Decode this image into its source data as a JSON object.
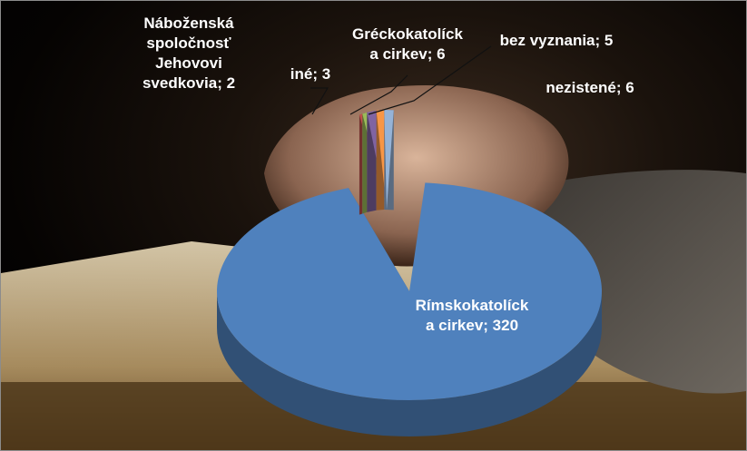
{
  "chart_data": {
    "type": "pie",
    "title": "",
    "slices": [
      {
        "label": "Rímskokatolícka cirkev",
        "value": 320,
        "color": "#4f81bd",
        "label_lines": [
          "Rímskokatolíck",
          "a cirkev; 320"
        ]
      },
      {
        "label": "Náboženská spoločnosť Jehovovi svedkovia",
        "value": 2,
        "color": "#c0504d",
        "label_lines": [
          "Náboženská",
          "spoločnosť",
          "Jehovovi",
          "svedkovia; 2"
        ]
      },
      {
        "label": "iné",
        "value": 3,
        "color": "#9bbb59",
        "label_lines": [
          "iné; 3"
        ]
      },
      {
        "label": "Gréckokatolícka cirkev",
        "value": 6,
        "color": "#8064a2",
        "label_lines": [
          "Gréckokatolíck",
          "a cirkev; 6"
        ]
      },
      {
        "label": "bez vyznania",
        "value": 5,
        "color": "#f79646",
        "label_lines": [
          "bez vyznania; 5"
        ]
      },
      {
        "label": "nezistené",
        "value": 6,
        "color": "#95b3d7",
        "label_lines": [
          "nezistené; 6"
        ]
      }
    ],
    "legend": "none",
    "style": "3d-pie-exploded"
  }
}
